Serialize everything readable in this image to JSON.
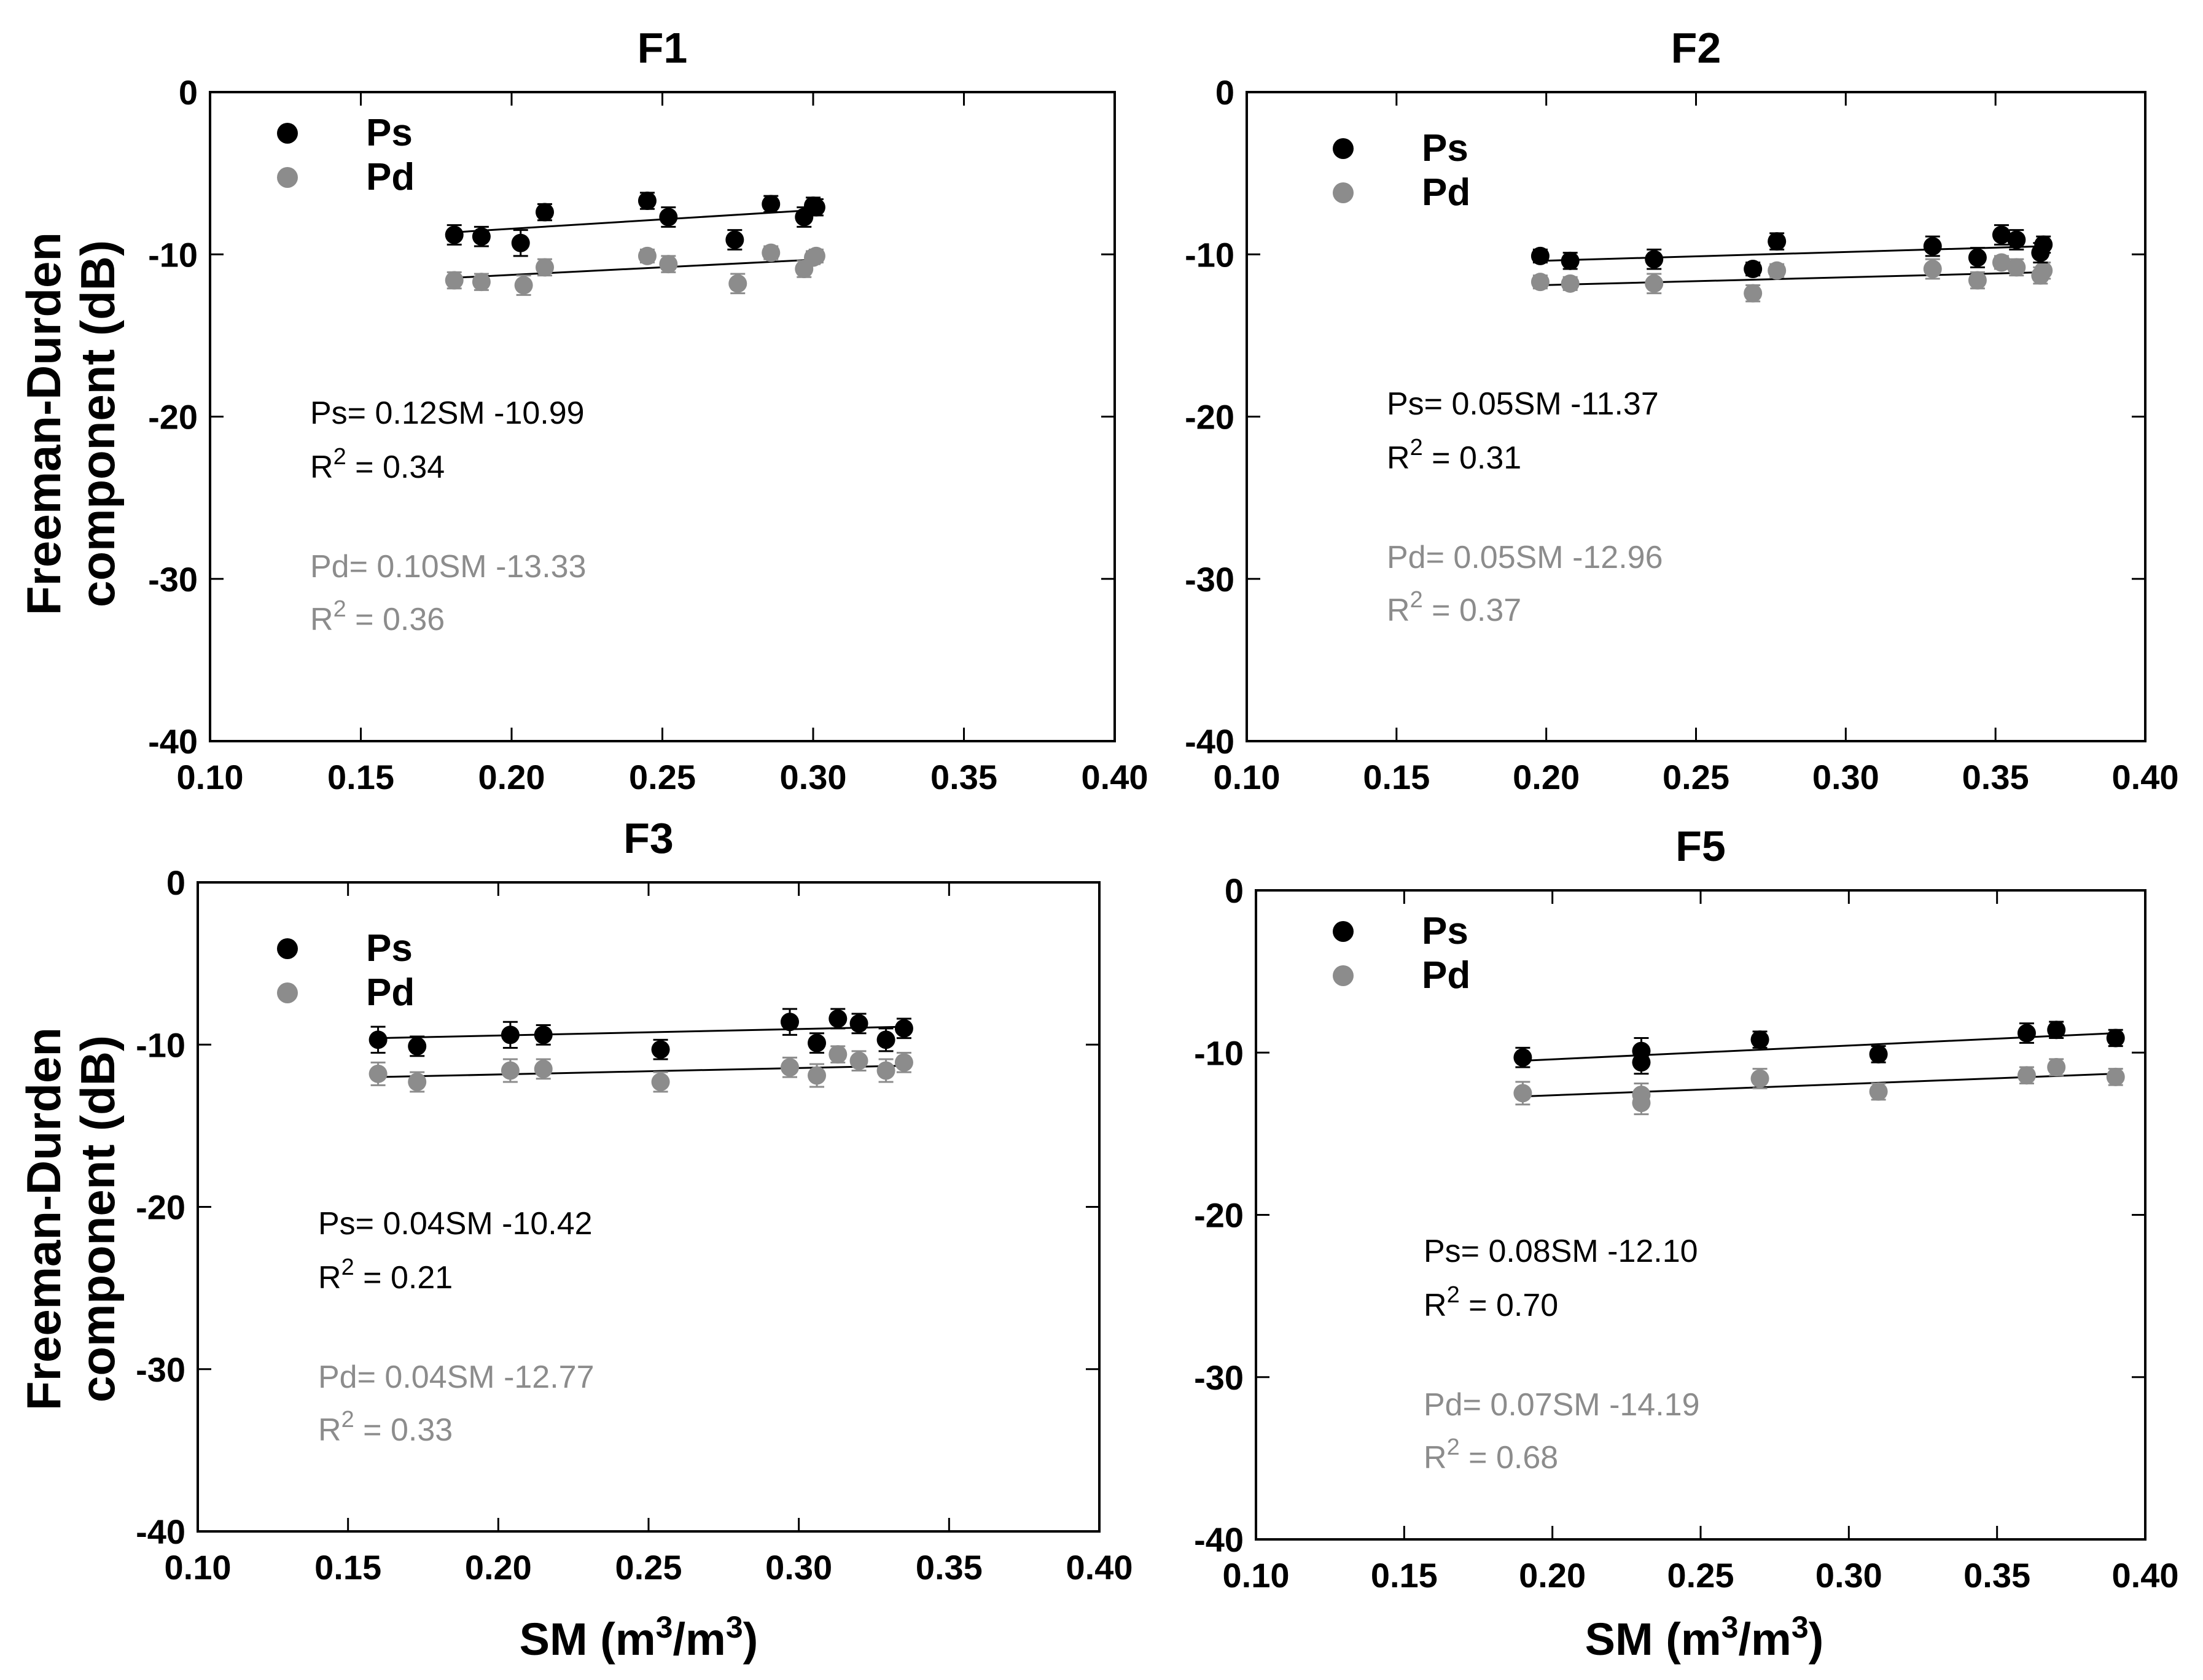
{
  "figure": {
    "y_axis_label_line1": "Freeman-Durden",
    "y_axis_label_line2": "component (dB)",
    "x_axis_label_main": "SM (m",
    "x_axis_label_sup1": "3",
    "x_axis_label_mid": "/m",
    "x_axis_label_sup2": "3",
    "x_axis_label_end": ")"
  },
  "chart_data": [
    {
      "type": "scatter",
      "title": "F1",
      "xlabel": "SM (m3/m3)",
      "ylabel": "Freeman-Durden component (dB)",
      "xlim": [
        0.1,
        0.4
      ],
      "ylim": [
        -40,
        0
      ],
      "x_ticks": [
        "0.10",
        "0.15",
        "0.20",
        "0.25",
        "0.30",
        "0.35",
        "0.40"
      ],
      "y_ticks": [
        "0",
        "-10",
        "-20",
        "-30",
        "-40"
      ],
      "legend": [
        {
          "name": "Ps",
          "color": "#000000"
        },
        {
          "name": "Pd",
          "color": "#8c8c8c"
        }
      ],
      "series": [
        {
          "name": "Ps",
          "color": "#000000",
          "x": [
            0.181,
            0.19,
            0.203,
            0.211,
            0.245,
            0.252,
            0.274,
            0.286,
            0.297,
            0.3,
            0.301
          ],
          "y": [
            -8.8,
            -8.9,
            -9.3,
            -7.4,
            -6.7,
            -7.7,
            -9.1,
            -6.9,
            -7.7,
            -7.0,
            -7.1
          ],
          "err": [
            0.6,
            0.6,
            0.8,
            0.5,
            0.5,
            0.6,
            0.6,
            0.5,
            0.6,
            0.5,
            0.5
          ]
        },
        {
          "name": "Pd",
          "color": "#8c8c8c",
          "x": [
            0.181,
            0.19,
            0.204,
            0.211,
            0.245,
            0.252,
            0.275,
            0.286,
            0.297,
            0.3,
            0.301
          ],
          "y": [
            -11.6,
            -11.7,
            -11.9,
            -10.8,
            -10.1,
            -10.6,
            -11.8,
            -9.9,
            -10.9,
            -10.2,
            -10.1
          ],
          "err": [
            0.5,
            0.5,
            0.6,
            0.5,
            0.4,
            0.5,
            0.6,
            0.4,
            0.5,
            0.4,
            0.4
          ]
        }
      ],
      "fits": [
        {
          "series": "Ps",
          "x": [
            0.18,
            0.3
          ],
          "y": [
            -8.65,
            -7.27
          ]
        },
        {
          "series": "Pd",
          "x": [
            0.18,
            0.3
          ],
          "y": [
            -11.45,
            -10.33
          ]
        }
      ],
      "annotations": {
        "ps_eq": "Ps= 0.12SM -10.99",
        "ps_r2_prefix": "R",
        "ps_r2_sup": "2",
        "ps_r2_value": " = 0.34",
        "pd_eq": "Pd= 0.10SM -13.33",
        "pd_r2_prefix": "R",
        "pd_r2_sup": "2",
        "pd_r2_value": " = 0.36"
      }
    },
    {
      "type": "scatter",
      "title": "F2",
      "xlabel": "SM (m3/m3)",
      "ylabel": "Freeman-Durden component (dB)",
      "xlim": [
        0.1,
        0.4
      ],
      "ylim": [
        -40,
        0
      ],
      "x_ticks": [
        "0.10",
        "0.15",
        "0.20",
        "0.25",
        "0.30",
        "0.35",
        "0.40"
      ],
      "y_ticks": [
        "0",
        "-10",
        "-20",
        "-30",
        "-40"
      ],
      "legend": [
        {
          "name": "Ps",
          "color": "#000000"
        },
        {
          "name": "Pd",
          "color": "#8c8c8c"
        }
      ],
      "series": [
        {
          "name": "Ps",
          "color": "#000000",
          "x": [
            0.198,
            0.208,
            0.236,
            0.269,
            0.277,
            0.329,
            0.344,
            0.352,
            0.357,
            0.365,
            0.366
          ],
          "y": [
            -10.1,
            -10.4,
            -10.3,
            -10.9,
            -9.2,
            -9.5,
            -10.2,
            -8.8,
            -9.1,
            -9.9,
            -9.4
          ],
          "err": [
            0.4,
            0.5,
            0.6,
            0.4,
            0.5,
            0.6,
            0.6,
            0.6,
            0.6,
            0.6,
            0.5
          ]
        },
        {
          "name": "Pd",
          "color": "#8c8c8c",
          "x": [
            0.198,
            0.208,
            0.236,
            0.269,
            0.277,
            0.329,
            0.344,
            0.352,
            0.357,
            0.365,
            0.366
          ],
          "y": [
            -11.7,
            -11.8,
            -11.8,
            -12.4,
            -11.0,
            -10.9,
            -11.6,
            -10.5,
            -10.8,
            -11.3,
            -11.0
          ],
          "err": [
            0.4,
            0.4,
            0.6,
            0.5,
            0.4,
            0.6,
            0.5,
            0.4,
            0.5,
            0.5,
            0.5
          ]
        }
      ],
      "fits": [
        {
          "series": "Ps",
          "x": [
            0.198,
            0.366
          ],
          "y": [
            -10.4,
            -9.5
          ]
        },
        {
          "series": "Pd",
          "x": [
            0.198,
            0.366
          ],
          "y": [
            -11.9,
            -11.1
          ]
        }
      ],
      "annotations": {
        "ps_eq": "Ps= 0.05SM -11.37",
        "ps_r2_prefix": "R",
        "ps_r2_sup": "2",
        "ps_r2_value": " = 0.31",
        "pd_eq": "Pd= 0.05SM -12.96",
        "pd_r2_prefix": "R",
        "pd_r2_sup": "2",
        "pd_r2_value": " = 0.37"
      }
    },
    {
      "type": "scatter",
      "title": "F3",
      "xlabel": "SM (m3/m3)",
      "ylabel": "Freeman-Durden component (dB)",
      "xlim": [
        0.1,
        0.4
      ],
      "ylim": [
        -40,
        0
      ],
      "x_ticks": [
        "0.10",
        "0.15",
        "0.20",
        "0.25",
        "0.30",
        "0.35",
        "0.40"
      ],
      "y_ticks": [
        "0",
        "-10",
        "-20",
        "-30",
        "-40"
      ],
      "legend": [
        {
          "name": "Ps",
          "color": "#000000"
        },
        {
          "name": "Pd",
          "color": "#8c8c8c"
        }
      ],
      "series": [
        {
          "name": "Ps",
          "color": "#000000",
          "x": [
            0.16,
            0.173,
            0.204,
            0.215,
            0.254,
            0.297,
            0.306,
            0.313,
            0.32,
            0.329,
            0.335
          ],
          "y": [
            -9.7,
            -10.1,
            -9.4,
            -9.4,
            -10.3,
            -8.6,
            -9.9,
            -8.4,
            -8.7,
            -9.7,
            -9.0
          ],
          "err": [
            0.8,
            0.6,
            0.8,
            0.6,
            0.6,
            0.8,
            0.6,
            0.6,
            0.6,
            0.7,
            0.6
          ]
        },
        {
          "name": "Pd",
          "color": "#8c8c8c",
          "x": [
            0.16,
            0.173,
            0.204,
            0.215,
            0.254,
            0.297,
            0.306,
            0.313,
            0.32,
            0.329,
            0.335
          ],
          "y": [
            -11.8,
            -12.3,
            -11.6,
            -11.5,
            -12.3,
            -11.4,
            -11.9,
            -10.6,
            -11.0,
            -11.6,
            -11.1
          ],
          "err": [
            0.7,
            0.6,
            0.7,
            0.6,
            0.6,
            0.6,
            0.7,
            0.5,
            0.6,
            0.7,
            0.6
          ]
        }
      ],
      "fits": [
        {
          "series": "Ps",
          "x": [
            0.16,
            0.335
          ],
          "y": [
            -9.6,
            -8.9
          ]
        },
        {
          "series": "Pd",
          "x": [
            0.16,
            0.335
          ],
          "y": [
            -12.0,
            -11.3
          ]
        }
      ],
      "annotations": {
        "ps_eq": "Ps= 0.04SM -10.42",
        "ps_r2_prefix": "R",
        "ps_r2_sup": "2",
        "ps_r2_value": " = 0.21",
        "pd_eq": "Pd= 0.04SM -12.77",
        "pd_r2_prefix": "R",
        "pd_r2_sup": "2",
        "pd_r2_value": " = 0.33"
      }
    },
    {
      "type": "scatter",
      "title": "F5",
      "xlabel": "SM (m3/m3)",
      "ylabel": "Freeman-Durden component (dB)",
      "xlim": [
        0.1,
        0.4
      ],
      "ylim": [
        -40,
        0
      ],
      "x_ticks": [
        "0.10",
        "0.15",
        "0.20",
        "0.25",
        "0.30",
        "0.35",
        "0.40"
      ],
      "y_ticks": [
        "0",
        "-10",
        "-20",
        "-30",
        "-40"
      ],
      "legend": [
        {
          "name": "Ps",
          "color": "#000000"
        },
        {
          "name": "Pd",
          "color": "#8c8c8c"
        }
      ],
      "series": [
        {
          "name": "Ps",
          "color": "#000000",
          "x": [
            0.19,
            0.23,
            0.23,
            0.27,
            0.31,
            0.36,
            0.37,
            0.39
          ],
          "y": [
            -10.3,
            -9.9,
            -10.6,
            -9.2,
            -10.1,
            -8.8,
            -8.6,
            -9.1
          ],
          "err": [
            0.6,
            0.8,
            0.7,
            0.5,
            0.5,
            0.6,
            0.5,
            0.5
          ]
        },
        {
          "name": "Pd",
          "color": "#8c8c8c",
          "x": [
            0.19,
            0.23,
            0.23,
            0.27,
            0.31,
            0.36,
            0.37,
            0.39
          ],
          "y": [
            -12.5,
            -12.6,
            -13.1,
            -11.6,
            -12.4,
            -11.4,
            -10.9,
            -11.5
          ],
          "err": [
            0.7,
            0.7,
            0.7,
            0.6,
            0.5,
            0.5,
            0.5,
            0.5
          ]
        }
      ],
      "fits": [
        {
          "series": "Ps",
          "x": [
            0.19,
            0.39
          ],
          "y": [
            -10.5,
            -8.8
          ]
        },
        {
          "series": "Pd",
          "x": [
            0.19,
            0.39
          ],
          "y": [
            -12.7,
            -11.3
          ]
        }
      ],
      "annotations": {
        "ps_eq": "Ps= 0.08SM -12.10",
        "ps_r2_prefix": "R",
        "ps_r2_sup": "2",
        "ps_r2_value": " = 0.70",
        "pd_eq": "Pd= 0.07SM -14.19",
        "pd_r2_prefix": "R",
        "pd_r2_sup": "2",
        "pd_r2_value": " = 0.68"
      }
    }
  ]
}
